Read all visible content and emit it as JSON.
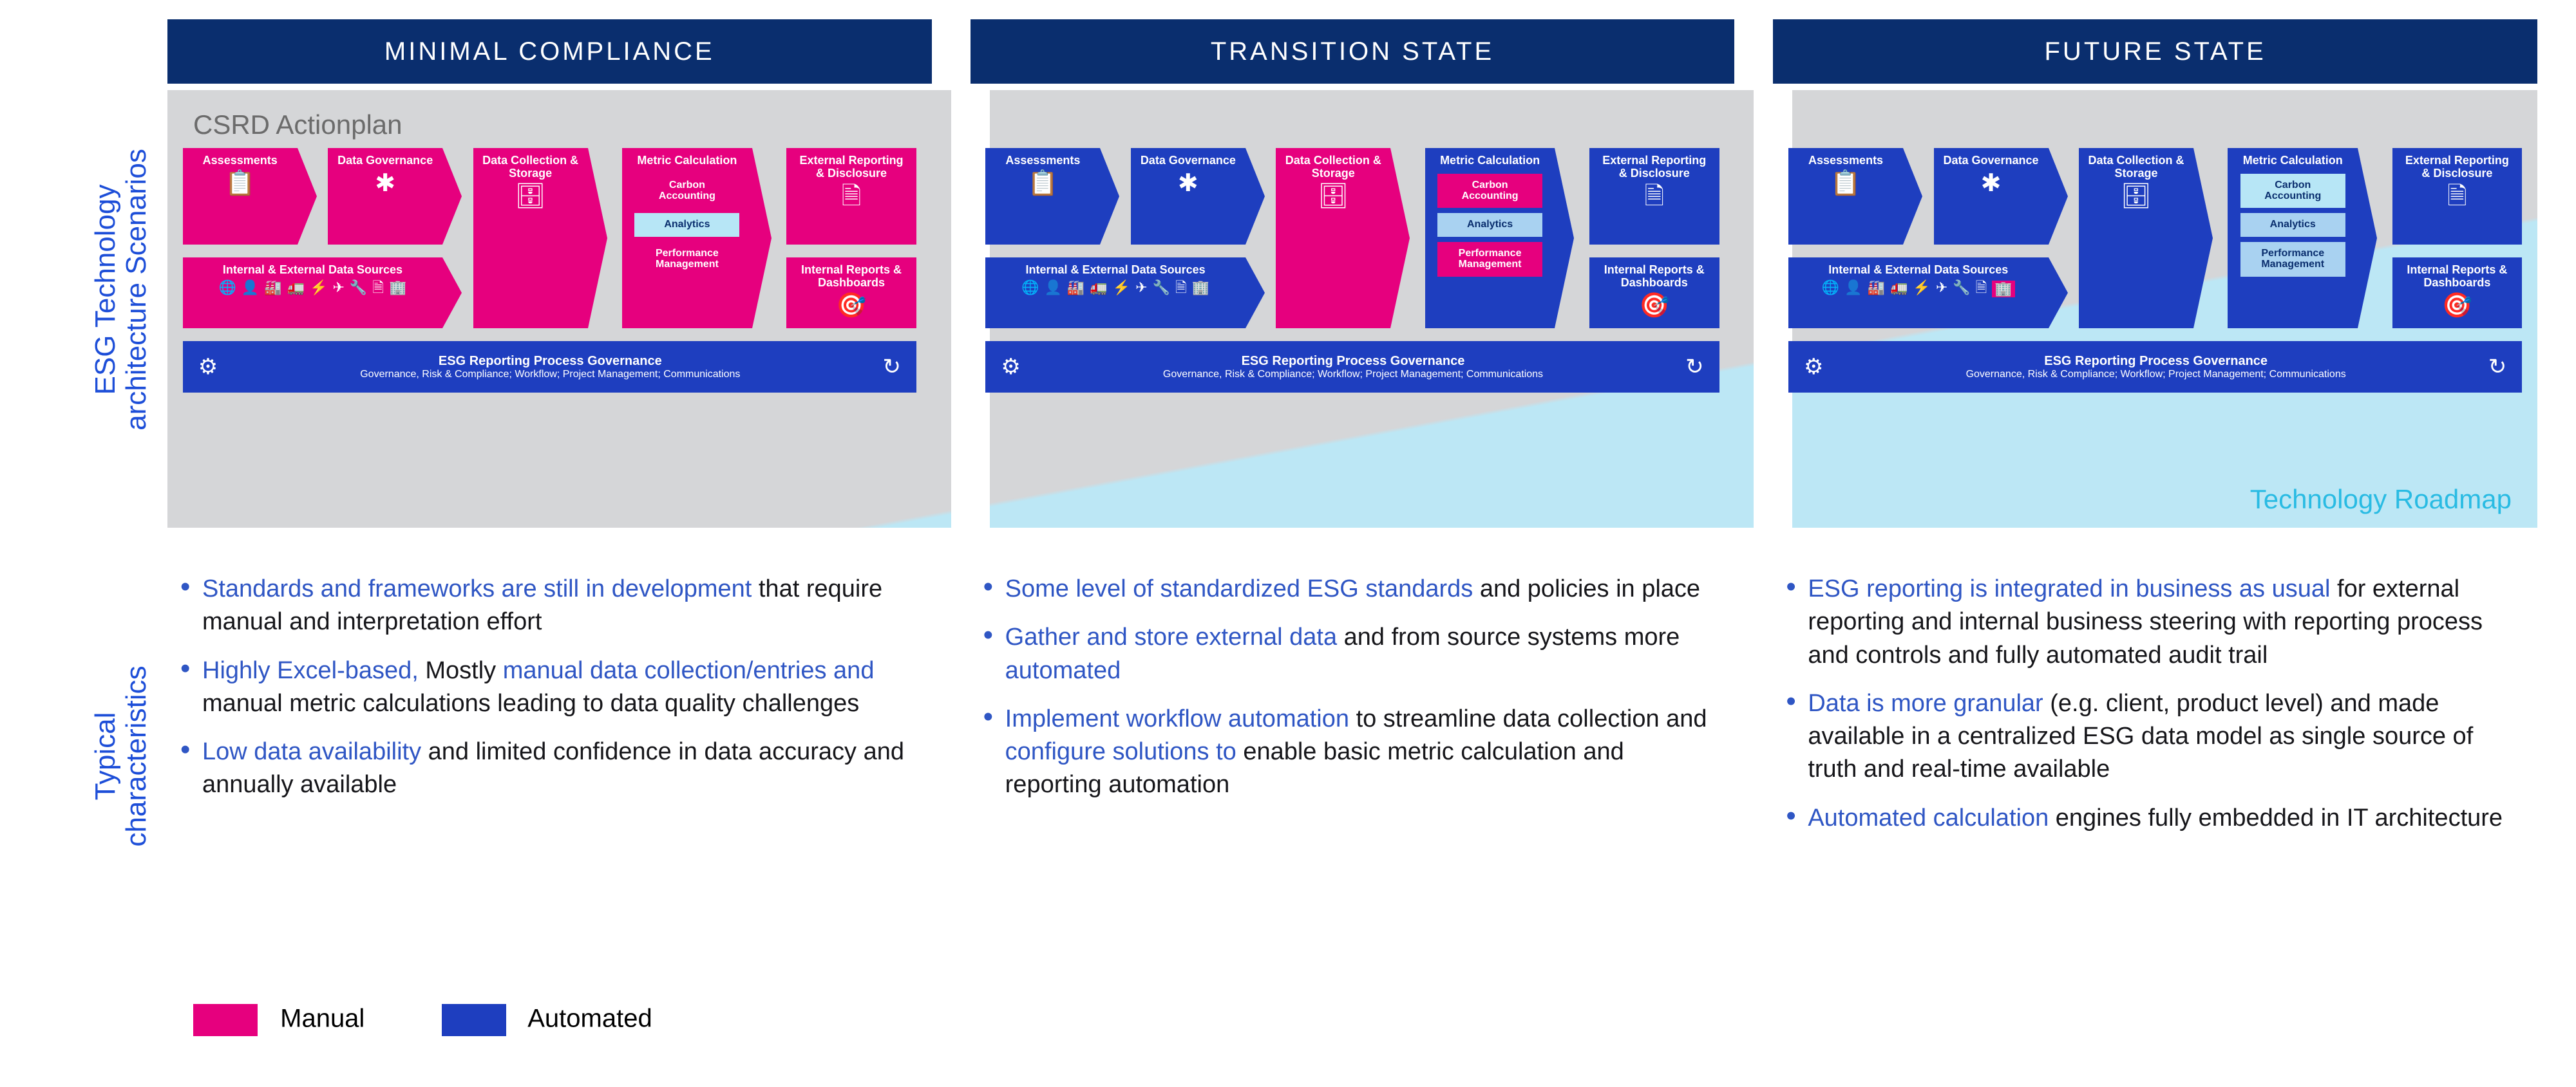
{
  "colors": {
    "pink": "#e6007e",
    "blue": "#1e3ebf",
    "dark_blue": "#0a2e6e",
    "light_grey": "#d5d6d8",
    "light_cyan": "#bce7f5",
    "cyan_text": "#29bbe3",
    "link_blue": "#2f56c4"
  },
  "side_labels": {
    "top_line1": "ESG Technology",
    "top_line2": "architecture Scenarios",
    "bottom_line1": "Typical",
    "bottom_line2": "characteristics"
  },
  "columns": [
    {
      "header": "MINIMAL COMPLIANCE"
    },
    {
      "header": "TRANSITION STATE"
    },
    {
      "header": "FUTURE STATE"
    }
  ],
  "csrd_label": "CSRD Actionplan",
  "tech_roadmap_label": "Technology Roadmap",
  "boxes": {
    "assess": "Assessments",
    "datagov": "Data Governance",
    "datacoll_l1": "Data Collection &",
    "datacoll_l2": "Storage",
    "metric": "Metric Calculation",
    "report_ext_l1": "External Reporting",
    "report_ext_l2": "& Disclosure",
    "report_int_l1": "Internal Reports &",
    "report_int_l2": "Dashboards",
    "sources": "Internal & External Data Sources",
    "chips": {
      "carbon_l1": "Carbon",
      "carbon_l2": "Accounting",
      "analytics": "Analytics",
      "perf_l1": "Performance",
      "perf_l2": "Management"
    },
    "gov_title": "ESG Reporting Process Governance",
    "gov_sub": "Governance, Risk & Compliance; Workflow; Project Management; Communications"
  },
  "panel_styles": [
    {
      "assess": "pink",
      "datagov": "pink",
      "datacoll": "pink",
      "metric_bg": "pink",
      "report_ext": "pink",
      "report_int": "pink",
      "sources": "pink",
      "chip_carbon": "pink",
      "chip_analytics": "lightblue",
      "chip_perf": "pink"
    },
    {
      "assess": "blue",
      "datagov": "blue",
      "datacoll": "pink",
      "metric_bg": "blue",
      "report_ext": "blue",
      "report_int": "blue",
      "sources": "blue",
      "chip_carbon": "pink",
      "chip_analytics": "light",
      "chip_perf": "pink"
    },
    {
      "assess": "blue",
      "datagov": "blue",
      "datacoll": "blue",
      "metric_bg": "blue",
      "report_ext": "blue",
      "report_int": "blue",
      "sources": "blue",
      "chip_carbon": "lightblue",
      "chip_analytics": "light",
      "chip_perf": "light"
    }
  ],
  "panel_sources_last_icon_pink": [
    false,
    false,
    true
  ],
  "characteristics": [
    [
      {
        "runs": [
          {
            "t": "Standards and frameworks are still in development ",
            "hl": true
          },
          {
            "t": "that require manual and interpretation effort"
          }
        ]
      },
      {
        "runs": [
          {
            "t": "Highly Excel-based, ",
            "hl": true
          },
          {
            "t": "Mostly "
          },
          {
            "t": "manual data collection/entries and ",
            "hl": true
          },
          {
            "t": "manual metric calculations leading to data quality challenges"
          }
        ]
      },
      {
        "runs": [
          {
            "t": "Low data availability ",
            "hl": true
          },
          {
            "t": "and limited confidence in data accuracy and annually available"
          }
        ]
      }
    ],
    [
      {
        "runs": [
          {
            "t": "Some level of standardized ESG standards ",
            "hl": true
          },
          {
            "t": "and policies in place"
          }
        ]
      },
      {
        "runs": [
          {
            "t": "Gather and store external data ",
            "hl": true
          },
          {
            "t": "and from source systems more "
          },
          {
            "t": "automated",
            "hl": true
          }
        ]
      },
      {
        "runs": [
          {
            "t": "Implement workflow automation ",
            "hl": true
          },
          {
            "t": "to streamline data collection and "
          },
          {
            "t": "configure solutions to ",
            "hl": true
          },
          {
            "t": "enable basic metric calculation and reporting automation"
          }
        ]
      }
    ],
    [
      {
        "runs": [
          {
            "t": "ESG reporting is integrated in business as usual ",
            "hl": true
          },
          {
            "t": "for external reporting and internal business steering with reporting process and controls and fully automated audit trail"
          }
        ]
      },
      {
        "runs": [
          {
            "t": "Data is more granular ",
            "hl": true
          },
          {
            "t": "(e.g. client, product level) and made available in a centralized ESG data model as single source of truth and real-time available"
          }
        ]
      },
      {
        "runs": [
          {
            "t": "Automated calculation ",
            "hl": true
          },
          {
            "t": "engines fully embedded in IT architecture"
          }
        ]
      }
    ]
  ],
  "legend": {
    "manual": "Manual",
    "automated": "Automated"
  },
  "icons": {
    "assess": "📋",
    "network": "✱",
    "server": "🗄",
    "doc": "🗎",
    "board": "🎯",
    "gear": "⚙",
    "cycle": "↻",
    "sources_set": [
      "🌐",
      "👤",
      "🏭",
      "🚛",
      "⚡",
      "✈",
      "🔧",
      "🗎",
      "🏢"
    ]
  }
}
